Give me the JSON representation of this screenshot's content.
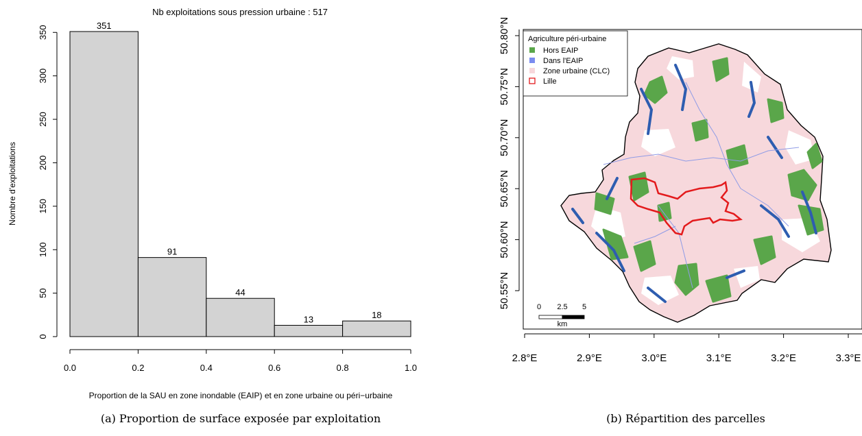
{
  "chart_data": [
    {
      "type": "bar",
      "title": "Nb exploitations sous pression urbaine : 517",
      "xlabel": "Proportion de la SAU en zone inondable (EAIP) et en zone urbaine ou péri−urbaine",
      "ylabel": "Nombre d'exploitations",
      "bins": [
        [
          0.0,
          0.2
        ],
        [
          0.2,
          0.4
        ],
        [
          0.4,
          0.6
        ],
        [
          0.6,
          0.8
        ],
        [
          0.8,
          1.0
        ]
      ],
      "values": [
        351,
        91,
        44,
        13,
        18
      ],
      "xlim": [
        0,
        1
      ],
      "ylim": [
        0,
        351
      ],
      "xticks": [
        "0.0",
        "0.2",
        "0.4",
        "0.6",
        "0.8",
        "1.0"
      ],
      "yticks": [
        "0",
        "50",
        "100",
        "150",
        "200",
        "250",
        "300",
        "350"
      ],
      "bar_color": "#d3d3d3",
      "grid": false,
      "caption": "(a) Proportion de surface exposée par exploitation"
    },
    {
      "type": "map",
      "xlim": [
        2.78,
        3.32
      ],
      "ylim": [
        50.505,
        50.82
      ],
      "xticks": [
        "2.8°E",
        "2.9°E",
        "3.0°E",
        "3.1°E",
        "3.2°E",
        "3.3°E"
      ],
      "yticks": [
        "50.55°N",
        "50.60°N",
        "50.65°N",
        "50.70°N",
        "50.75°N",
        "50.80°N"
      ],
      "legend": {
        "title": "Agriculture péri-urbaine",
        "placement": "top-left",
        "items": [
          {
            "label": "Hors EAIP",
            "color": "#5aa64a"
          },
          {
            "label": "Dans l'EAIP",
            "color": "#7b8cf0"
          },
          {
            "label": "Zone urbaine (CLC)",
            "color": "#f7d8dc"
          },
          {
            "label": "Lille",
            "color": "#e31a1c"
          }
        ]
      },
      "scalebar": {
        "labels": [
          "0",
          "2.5",
          "5"
        ],
        "unit": "km"
      },
      "colors": {
        "urban": "#f7d8dc",
        "outside_eaip": "#5aa64a",
        "inside_eaip": "#2e5db0",
        "rivers": "#8f9be6",
        "lille": "#e31a1c",
        "outline": "#000000"
      },
      "caption": "(b) Répartition des parcelles"
    }
  ]
}
